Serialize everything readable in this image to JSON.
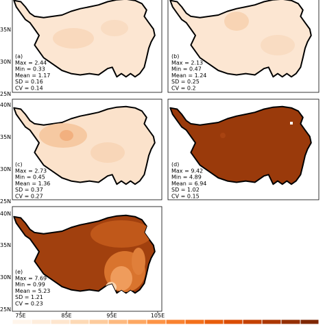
{
  "panels": [
    {
      "label": "(a)",
      "stats": [
        "Max = 2.44",
        "Min = 0.33",
        "Mean = 1.17",
        "SD = 0.16",
        "CV = 0.14"
      ]
    },
    {
      "label": "(b)",
      "stats": [
        "Max = 2.13",
        "Min = 0.47",
        "Mean = 1.24",
        "SD = 0.25",
        "CV = 0.2"
      ]
    },
    {
      "label": "(c)",
      "stats": [
        "Max = 2.73",
        "Min = 0.45",
        "Mean = 1.36",
        "SD = 0.37",
        "CV = 0.27"
      ]
    },
    {
      "label": "(d)",
      "stats": [
        "Max = 9.42",
        "Min = 4.89",
        "Mean = 6.94",
        "SD = 1.02",
        "CV = 0.15"
      ]
    },
    {
      "label": "(e)",
      "stats": [
        "Max = 7.69",
        "Min = 0.99",
        "Mean = 5.23",
        "SD = 1.21",
        "CV = 0.23"
      ]
    }
  ],
  "y_tick_labels": [
    [
      "35N",
      "30N",
      "25N"
    ],
    [
      "40N",
      "35N",
      "30N",
      "25N"
    ],
    [
      "40N",
      "35N",
      "30N",
      "25N"
    ]
  ],
  "x_tick_labels": [
    "75E",
    "85E",
    "95E",
    "105E"
  ]
}
